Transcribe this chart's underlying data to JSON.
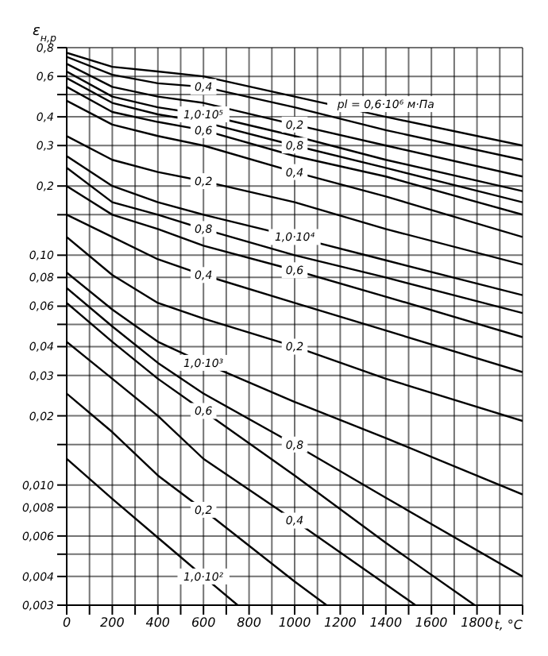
{
  "chart_data": {
    "type": "line",
    "xlabel": "t, °C",
    "ylabel": "ε$_{н,р}$",
    "log": "y",
    "grid": true,
    "marker": "none",
    "line_style": "solid",
    "xlim": [
      0,
      2000
    ],
    "xticks": [
      0,
      {
        "value": 100,
        "label": null
      },
      200,
      {
        "value": 300,
        "label": null
      },
      400,
      {
        "value": 500,
        "label": null
      },
      600,
      {
        "value": 700,
        "label": null
      },
      800,
      {
        "value": 900,
        "label": null
      },
      1000,
      {
        "value": 1100,
        "label": null
      },
      1200,
      {
        "value": 1300,
        "label": null
      },
      1400,
      {
        "value": 1500,
        "label": null
      },
      1600,
      {
        "value": 1700,
        "label": null
      },
      1800,
      {
        "value": 1900,
        "label": null
      },
      {
        "value": 2000,
        "label": null
      }
    ],
    "ylim": [
      0.003,
      0.8
    ],
    "yticks": [
      {
        "value": 0.003,
        "label": "0,003"
      },
      {
        "value": 0.004,
        "label": "0,004"
      },
      {
        "value": 0.005,
        "label": null
      },
      {
        "value": 0.006,
        "label": "0,006"
      },
      {
        "value": 0.008,
        "label": "0,008"
      },
      {
        "value": 0.01,
        "label": "0,010"
      },
      {
        "value": 0.015,
        "label": null
      },
      {
        "value": 0.02,
        "label": "0,02"
      },
      {
        "value": 0.03,
        "label": "0,03"
      },
      {
        "value": 0.04,
        "label": "0,04"
      },
      {
        "value": 0.05,
        "label": null
      },
      {
        "value": 0.06,
        "label": "0,06"
      },
      {
        "value": 0.08,
        "label": "0,08"
      },
      {
        "value": 0.1,
        "label": "0,10"
      },
      {
        "value": 0.15,
        "label": null
      },
      {
        "value": 0.2,
        "label": "0,2"
      },
      {
        "value": 0.3,
        "label": "0,3"
      },
      {
        "value": 0.4,
        "label": "0,4"
      },
      {
        "value": 0.5,
        "label": null
      },
      {
        "value": 0.6,
        "label": "0,6"
      },
      {
        "value": 0.8,
        "label": "0,8"
      }
    ],
    "series": [
      {
        "name": "pl = 0,6·10⁶ м·Па",
        "color": "#000000",
        "x": [
          0,
          200,
          400,
          600,
          1000,
          1400,
          2000
        ],
        "values": [
          0.76,
          0.66,
          0.63,
          0.6,
          0.49,
          0.4,
          0.3
        ]
      },
      {
        "name": "0,4",
        "color": "#000000",
        "x": [
          0,
          200,
          400,
          600,
          1000,
          1400,
          2000
        ],
        "values": [
          0.73,
          0.61,
          0.56,
          0.54,
          0.44,
          0.35,
          0.26
        ]
      },
      {
        "name": "0,2",
        "color": "#000000",
        "x": [
          0,
          200,
          400,
          600,
          1000,
          1400,
          2000
        ],
        "values": [
          0.68,
          0.54,
          0.49,
          0.46,
          0.37,
          0.3,
          0.22
        ]
      },
      {
        "name": "1,0·10⁵",
        "color": "#000000",
        "x": [
          0,
          200,
          400,
          600,
          1000,
          1400,
          2000
        ],
        "values": [
          0.63,
          0.49,
          0.44,
          0.41,
          0.33,
          0.26,
          0.19
        ]
      },
      {
        "name": "0,8",
        "color": "#000000",
        "x": [
          0,
          200,
          400,
          600,
          1000,
          1400,
          2000
        ],
        "values": [
          0.59,
          0.46,
          0.41,
          0.38,
          0.3,
          0.24,
          0.17
        ]
      },
      {
        "name": "0,6",
        "color": "#000000",
        "x": [
          0,
          200,
          400,
          600,
          1000,
          1400,
          2000
        ],
        "values": [
          0.54,
          0.42,
          0.38,
          0.35,
          0.27,
          0.22,
          0.15
        ]
      },
      {
        "name": "0,4",
        "color": "#000000",
        "x": [
          0,
          200,
          400,
          600,
          1000,
          1400,
          2000
        ],
        "values": [
          0.47,
          0.37,
          0.33,
          0.3,
          0.23,
          0.18,
          0.12
        ]
      },
      {
        "name": "0,2",
        "color": "#000000",
        "x": [
          0,
          200,
          400,
          600,
          1000,
          1400,
          2000
        ],
        "values": [
          0.33,
          0.26,
          0.23,
          0.21,
          0.17,
          0.13,
          0.091
        ]
      },
      {
        "name": "1,0·10⁴",
        "color": "#000000",
        "x": [
          0,
          200,
          400,
          600,
          1000,
          1400,
          2000
        ],
        "values": [
          0.27,
          0.2,
          0.17,
          0.15,
          0.12,
          0.095,
          0.067
        ]
      },
      {
        "name": "0,8",
        "color": "#000000",
        "x": [
          0,
          200,
          400,
          600,
          1000,
          1400,
          2000
        ],
        "values": [
          0.24,
          0.17,
          0.15,
          0.13,
          0.1,
          0.08,
          0.056
        ]
      },
      {
        "name": "0,6",
        "color": "#000000",
        "x": [
          0,
          200,
          400,
          600,
          1000,
          1400,
          2000
        ],
        "values": [
          0.2,
          0.15,
          0.13,
          0.11,
          0.086,
          0.066,
          0.044
        ]
      },
      {
        "name": "0,4",
        "color": "#000000",
        "x": [
          0,
          200,
          400,
          600,
          1000,
          1400,
          2000
        ],
        "values": [
          0.15,
          0.12,
          0.096,
          0.082,
          0.062,
          0.047,
          0.031
        ]
      },
      {
        "name": "0,2",
        "color": "#000000",
        "x": [
          0,
          200,
          400,
          600,
          1000,
          1400,
          2000
        ],
        "values": [
          0.12,
          0.082,
          0.062,
          0.053,
          0.04,
          0.029,
          0.019
        ]
      },
      {
        "name": "1,0·10³",
        "color": "#000000",
        "x": [
          0,
          200,
          400,
          600,
          1000,
          1400,
          2000
        ],
        "values": [
          0.084,
          0.058,
          0.042,
          0.034,
          0.023,
          0.016,
          0.0091
        ]
      },
      {
        "name": "0,8",
        "color": "#000000",
        "x": [
          0,
          200,
          400,
          600,
          1000,
          1400,
          2000
        ],
        "values": [
          0.072,
          0.049,
          0.034,
          0.025,
          0.015,
          0.0088,
          0.004
        ]
      },
      {
        "name": "0,6",
        "color": "#000000",
        "x": [
          0,
          200,
          400,
          600,
          1000,
          1400,
          1790
        ],
        "values": [
          0.062,
          0.042,
          0.029,
          0.021,
          0.011,
          0.0056,
          0.003
        ]
      },
      {
        "name": "0,4",
        "color": "#000000",
        "x": [
          0,
          200,
          400,
          600,
          1000,
          1400,
          1530
        ],
        "values": [
          0.042,
          0.029,
          0.02,
          0.013,
          0.007,
          0.0037,
          0.003
        ]
      },
      {
        "name": "0,2",
        "color": "#000000",
        "x": [
          0,
          200,
          400,
          600,
          1000,
          1140
        ],
        "values": [
          0.025,
          0.017,
          0.011,
          0.0078,
          0.0038,
          0.003
        ]
      },
      {
        "name": "1,0·10²",
        "color": "#000000",
        "x": [
          0,
          200,
          400,
          600,
          750
        ],
        "values": [
          0.013,
          0.0087,
          0.0059,
          0.004,
          0.003
        ]
      }
    ]
  }
}
